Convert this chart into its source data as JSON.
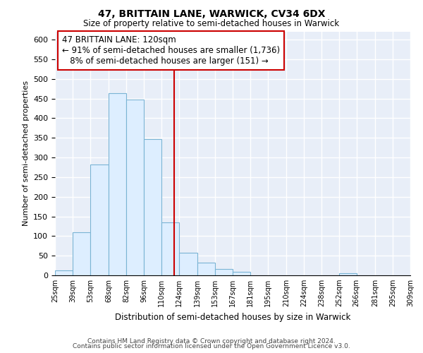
{
  "title": "47, BRITTAIN LANE, WARWICK, CV34 6DX",
  "subtitle": "Size of property relative to semi-detached houses in Warwick",
  "xlabel": "Distribution of semi-detached houses by size in Warwick",
  "ylabel": "Number of semi-detached properties",
  "bin_labels": [
    "25sqm",
    "39sqm",
    "53sqm",
    "68sqm",
    "82sqm",
    "96sqm",
    "110sqm",
    "124sqm",
    "139sqm",
    "153sqm",
    "167sqm",
    "181sqm",
    "195sqm",
    "210sqm",
    "224sqm",
    "238sqm",
    "252sqm",
    "266sqm",
    "281sqm",
    "295sqm",
    "309sqm"
  ],
  "bin_edges": [
    25,
    39,
    53,
    68,
    82,
    96,
    110,
    124,
    139,
    153,
    167,
    181,
    195,
    210,
    224,
    238,
    252,
    266,
    281,
    295,
    309
  ],
  "bar_heights": [
    13,
    110,
    283,
    463,
    447,
    347,
    135,
    57,
    32,
    16,
    9,
    0,
    0,
    0,
    0,
    0,
    6,
    0,
    0,
    0,
    0
  ],
  "bar_color": "#ddeeff",
  "bar_edge_color": "#7ab4d4",
  "property_line_x": 120,
  "property_line_color": "#cc0000",
  "annotation_line1": "47 BRITTAIN LANE: 120sqm",
  "annotation_line2": "← 91% of semi-detached houses are smaller (1,736)",
  "annotation_line3": "   8% of semi-detached houses are larger (151) →",
  "ylim": [
    0,
    620
  ],
  "yticks": [
    0,
    50,
    100,
    150,
    200,
    250,
    300,
    350,
    400,
    450,
    500,
    550,
    600
  ],
  "footer_line1": "Contains HM Land Registry data © Crown copyright and database right 2024.",
  "footer_line2": "Contains public sector information licensed under the Open Government Licence v3.0.",
  "background_color": "#ffffff",
  "plot_bg_color": "#e8eef8",
  "grid_color": "#ffffff"
}
